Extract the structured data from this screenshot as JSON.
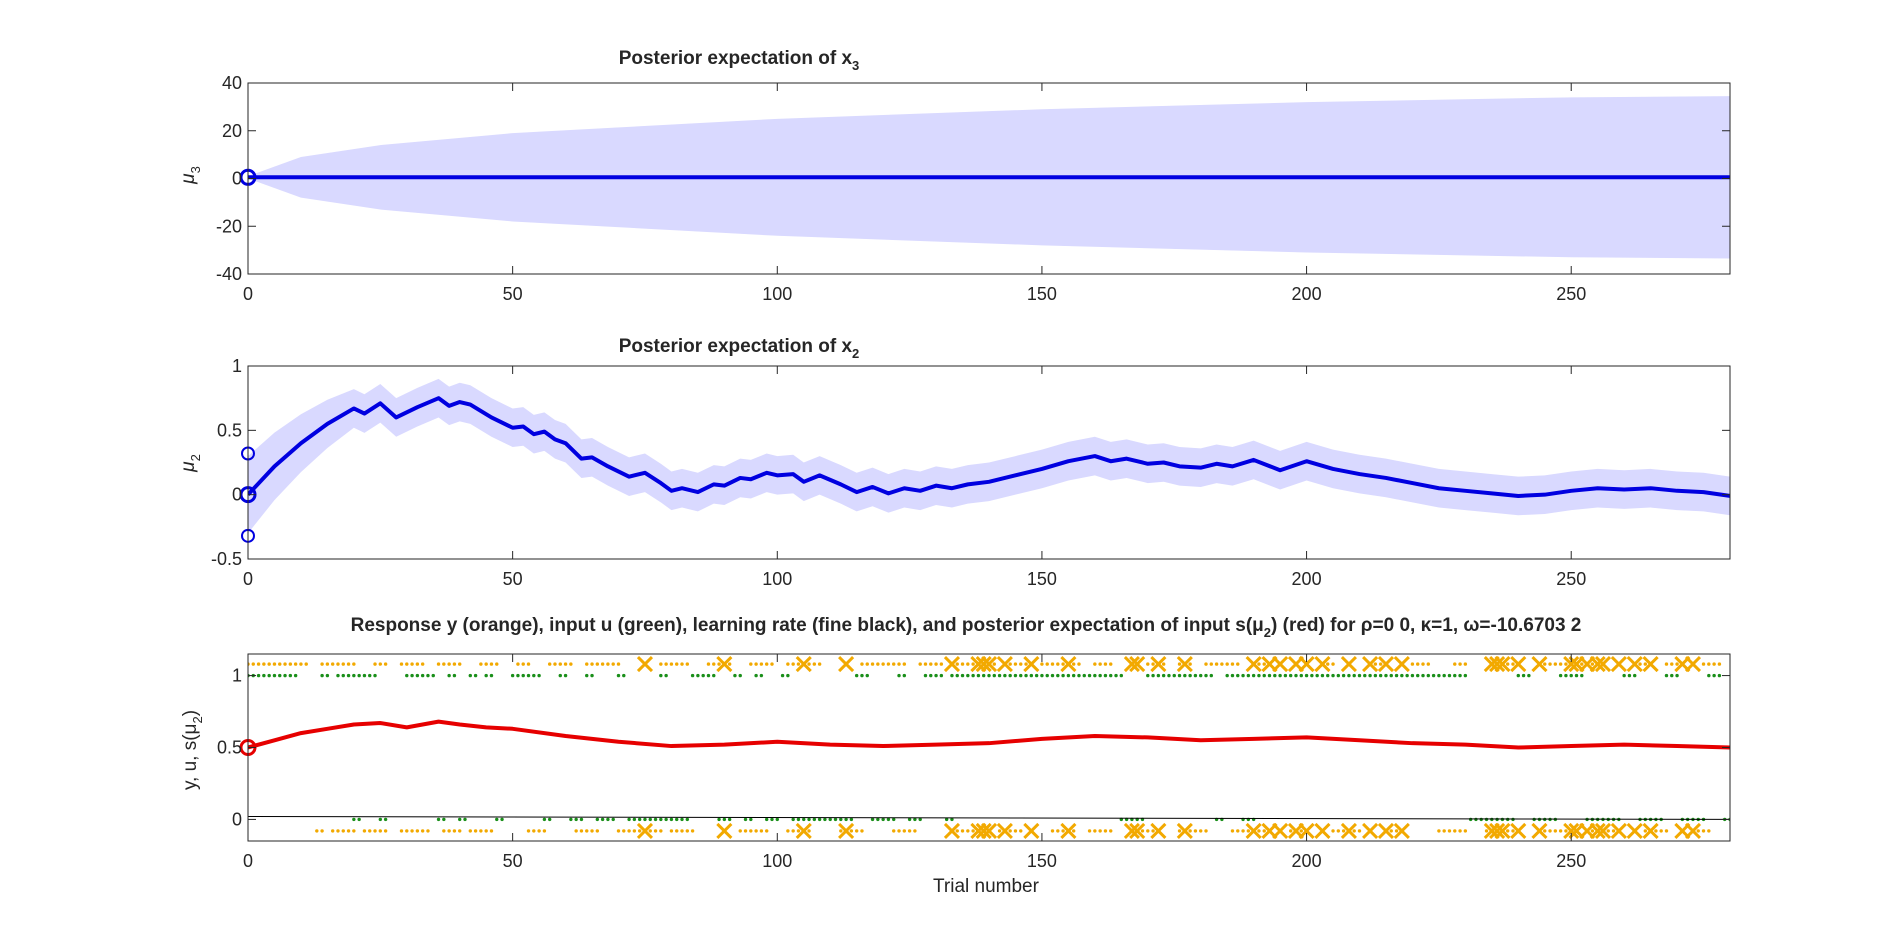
{
  "chart_data": [
    {
      "id": "p1",
      "type": "line",
      "title": {
        "main": "Posterior expectation of x",
        "sub": "3"
      },
      "ylabel": {
        "main": "μ",
        "sub": "3"
      },
      "xlabel": "",
      "xlim": [
        0,
        280
      ],
      "ylim": [
        -40,
        40
      ],
      "xticks": [
        0,
        50,
        100,
        150,
        200,
        250
      ],
      "yticks": [
        -40,
        -20,
        0,
        20,
        40
      ],
      "colors": {
        "line": "#0000e0",
        "band": "#d9d9ff"
      },
      "series": [
        {
          "x": [
            0,
            280
          ],
          "y": [
            0.5,
            0.5
          ]
        }
      ],
      "band": {
        "x": [
          0,
          10,
          25,
          50,
          100,
          150,
          200,
          250,
          280
        ],
        "upper": [
          1,
          9,
          14,
          19,
          25,
          29,
          32,
          34,
          34.5
        ],
        "lower": [
          0,
          -8,
          -13,
          -18,
          -24,
          -28,
          -31,
          -33,
          -33.5
        ]
      },
      "initial_markers": [
        {
          "x": 0,
          "y": 0.5
        }
      ]
    },
    {
      "id": "p2",
      "type": "line",
      "title": {
        "main": "Posterior expectation of x",
        "sub": "2"
      },
      "ylabel": {
        "main": "μ",
        "sub": "2"
      },
      "xlabel": "",
      "xlim": [
        0,
        280
      ],
      "ylim": [
        -0.5,
        1
      ],
      "xticks": [
        0,
        50,
        100,
        150,
        200,
        250
      ],
      "yticks": [
        -0.5,
        0,
        0.5,
        1
      ],
      "colors": {
        "line": "#0000e0",
        "band": "#d9d9ff"
      },
      "series": [
        {
          "x": [
            0,
            5,
            10,
            15,
            20,
            22,
            25,
            28,
            32,
            36,
            38,
            40,
            42,
            46,
            50,
            52,
            54,
            56,
            58,
            60,
            63,
            65,
            68,
            72,
            75,
            78,
            80,
            82,
            85,
            88,
            90,
            93,
            95,
            98,
            100,
            103,
            105,
            108,
            112,
            115,
            118,
            121,
            124,
            127,
            130,
            133,
            136,
            140,
            145,
            150,
            155,
            160,
            163,
            166,
            170,
            173,
            176,
            180,
            183,
            186,
            190,
            195,
            200,
            205,
            210,
            215,
            220,
            225,
            230,
            235,
            240,
            245,
            250,
            255,
            260,
            265,
            270,
            275,
            280
          ],
          "y": [
            0.0,
            0.22,
            0.4,
            0.55,
            0.67,
            0.63,
            0.71,
            0.6,
            0.68,
            0.75,
            0.69,
            0.72,
            0.7,
            0.6,
            0.52,
            0.53,
            0.47,
            0.49,
            0.43,
            0.4,
            0.28,
            0.29,
            0.22,
            0.14,
            0.17,
            0.09,
            0.03,
            0.05,
            0.02,
            0.08,
            0.07,
            0.13,
            0.12,
            0.17,
            0.15,
            0.16,
            0.1,
            0.15,
            0.08,
            0.02,
            0.06,
            0.01,
            0.05,
            0.03,
            0.07,
            0.05,
            0.08,
            0.1,
            0.15,
            0.2,
            0.26,
            0.3,
            0.26,
            0.28,
            0.24,
            0.25,
            0.22,
            0.21,
            0.24,
            0.22,
            0.27,
            0.19,
            0.26,
            0.2,
            0.16,
            0.13,
            0.09,
            0.05,
            0.03,
            0.01,
            -0.01,
            0.0,
            0.03,
            0.05,
            0.04,
            0.05,
            0.03,
            0.02,
            -0.01
          ]
        }
      ],
      "band_width": 0.15,
      "band_start": [
        0,
        0.3
      ],
      "initial_markers": [
        {
          "x": 0,
          "y": 0.0,
          "filled": true
        },
        {
          "x": 0,
          "y": 0.32
        },
        {
          "x": 0,
          "y": -0.32
        }
      ]
    },
    {
      "id": "p3",
      "type": "line",
      "title": {
        "main": "Response y (orange), input u (green), learning rate (fine black), and posterior expectation of input s(μ",
        "sub": "2",
        "tail": ") (red) for ρ=0  0, κ=1, ω=-10.6703          2"
      },
      "ylabel": {
        "main": "y, u, s(μ",
        "sub": "2",
        "tail": ")"
      },
      "xlabel": "Trial number",
      "xlim": [
        0,
        280
      ],
      "ylim": [
        -0.15,
        1.15
      ],
      "xticks": [
        0,
        50,
        100,
        150,
        200,
        250
      ],
      "yticks": [
        0,
        0.5,
        1
      ],
      "colors": {
        "response": "#f2a900",
        "input": "#1a8f1a",
        "posterior": "#e60000",
        "learning_rate": "#000000"
      },
      "series": [
        {
          "name": "posterior expectation of input s(μ2)",
          "x": [
            0,
            5,
            10,
            15,
            20,
            25,
            30,
            36,
            40,
            45,
            50,
            60,
            70,
            80,
            90,
            100,
            110,
            120,
            130,
            140,
            150,
            160,
            170,
            180,
            190,
            200,
            210,
            220,
            230,
            240,
            250,
            260,
            270,
            280
          ],
          "y": [
            0.5,
            0.55,
            0.6,
            0.63,
            0.66,
            0.67,
            0.64,
            0.68,
            0.66,
            0.64,
            0.63,
            0.58,
            0.54,
            0.51,
            0.52,
            0.54,
            0.52,
            0.51,
            0.52,
            0.53,
            0.56,
            0.58,
            0.57,
            0.55,
            0.56,
            0.57,
            0.55,
            0.53,
            0.52,
            0.5,
            0.51,
            0.52,
            0.51,
            0.5
          ]
        },
        {
          "name": "learning rate",
          "x": [
            0,
            280
          ],
          "y": [
            0.02,
            0.0
          ]
        }
      ],
      "initial_markers": [
        {
          "x": 0,
          "y": 0.5
        }
      ],
      "input_u": {
        "ones": [
          [
            0,
            9
          ],
          [
            14,
            15
          ],
          [
            17,
            24
          ],
          [
            30,
            35
          ],
          [
            38,
            39
          ],
          [
            42,
            43
          ],
          [
            45,
            46
          ],
          [
            50,
            55
          ],
          [
            59,
            60
          ],
          [
            64,
            65
          ],
          [
            70,
            71
          ],
          [
            78,
            79
          ],
          [
            84,
            88
          ],
          [
            92,
            93
          ],
          [
            96,
            97
          ],
          [
            101,
            102
          ],
          [
            115,
            117
          ],
          [
            123,
            124
          ],
          [
            128,
            131
          ],
          [
            133,
            165
          ],
          [
            170,
            182
          ],
          [
            185,
            230
          ],
          [
            240,
            242
          ],
          [
            248,
            252
          ],
          [
            260,
            262
          ],
          [
            268,
            270
          ],
          [
            276,
            278
          ]
        ],
        "zeros": [
          [
            20,
            21
          ],
          [
            25,
            26
          ],
          [
            36,
            37
          ],
          [
            40,
            41
          ],
          [
            47,
            48
          ],
          [
            56,
            57
          ],
          [
            61,
            63
          ],
          [
            66,
            69
          ],
          [
            72,
            83
          ],
          [
            89,
            91
          ],
          [
            94,
            95
          ],
          [
            98,
            100
          ],
          [
            103,
            114
          ],
          [
            118,
            122
          ],
          [
            125,
            127
          ],
          [
            132,
            133
          ],
          [
            165,
            169
          ],
          [
            183,
            184
          ],
          [
            188,
            190
          ],
          [
            231,
            239
          ],
          [
            243,
            247
          ],
          [
            253,
            259
          ],
          [
            263,
            267
          ],
          [
            271,
            275
          ],
          [
            279,
            280
          ]
        ]
      },
      "response_y": {
        "ones": [
          [
            0,
            11
          ],
          [
            14,
            20
          ],
          [
            24,
            26
          ],
          [
            29,
            33
          ],
          [
            36,
            40
          ],
          [
            44,
            47
          ],
          [
            51,
            53
          ],
          [
            57,
            61
          ],
          [
            64,
            70
          ],
          [
            78,
            83
          ],
          [
            87,
            91
          ],
          [
            95,
            99
          ],
          [
            102,
            108
          ],
          [
            116,
            124
          ],
          [
            127,
            131
          ],
          [
            133,
            137
          ],
          [
            139,
            141
          ],
          [
            144,
            147
          ],
          [
            150,
            157
          ],
          [
            160,
            163
          ],
          [
            170,
            173
          ],
          [
            176,
            178
          ],
          [
            181,
            187
          ],
          [
            190,
            193
          ],
          [
            203,
            205
          ],
          [
            212,
            214
          ],
          [
            220,
            223
          ],
          [
            228,
            230
          ],
          [
            237,
            240
          ],
          [
            245,
            249
          ],
          [
            252,
            255
          ],
          [
            262,
            265
          ],
          [
            268,
            271
          ],
          [
            275,
            278
          ]
        ],
        "zeros": [
          [
            13,
            14
          ],
          [
            16,
            20
          ],
          [
            22,
            26
          ],
          [
            29,
            34
          ],
          [
            37,
            40
          ],
          [
            42,
            46
          ],
          [
            53,
            56
          ],
          [
            62,
            66
          ],
          [
            70,
            78
          ],
          [
            80,
            84
          ],
          [
            93,
            98
          ],
          [
            102,
            106
          ],
          [
            112,
            116
          ],
          [
            122,
            126
          ],
          [
            133,
            139
          ],
          [
            142,
            146
          ],
          [
            152,
            156
          ],
          [
            159,
            163
          ],
          [
            167,
            171
          ],
          [
            176,
            181
          ],
          [
            186,
            192
          ],
          [
            197,
            200
          ],
          [
            205,
            210
          ],
          [
            215,
            218
          ],
          [
            225,
            230
          ],
          [
            234,
            239
          ],
          [
            244,
            250
          ],
          [
            253,
            258
          ],
          [
            264,
            268
          ],
          [
            273,
            276
          ]
        ]
      },
      "crosses_top": [
        75,
        90,
        105,
        113,
        133,
        138,
        139,
        140,
        143,
        148,
        155,
        167,
        168,
        172,
        177,
        190,
        193,
        195,
        198,
        200,
        203,
        208,
        212,
        215,
        218,
        235,
        236,
        237,
        240,
        244,
        250,
        251,
        253,
        255,
        256,
        259,
        262,
        265,
        271,
        273
      ],
      "crosses_bottom": [
        75,
        90,
        105,
        113,
        133,
        138,
        139,
        140,
        143,
        148,
        155,
        167,
        168,
        172,
        177,
        190,
        193,
        195,
        198,
        200,
        203,
        208,
        212,
        215,
        218,
        235,
        236,
        237,
        240,
        244,
        250,
        251,
        253,
        255,
        256,
        259,
        262,
        265,
        271,
        273
      ]
    }
  ]
}
